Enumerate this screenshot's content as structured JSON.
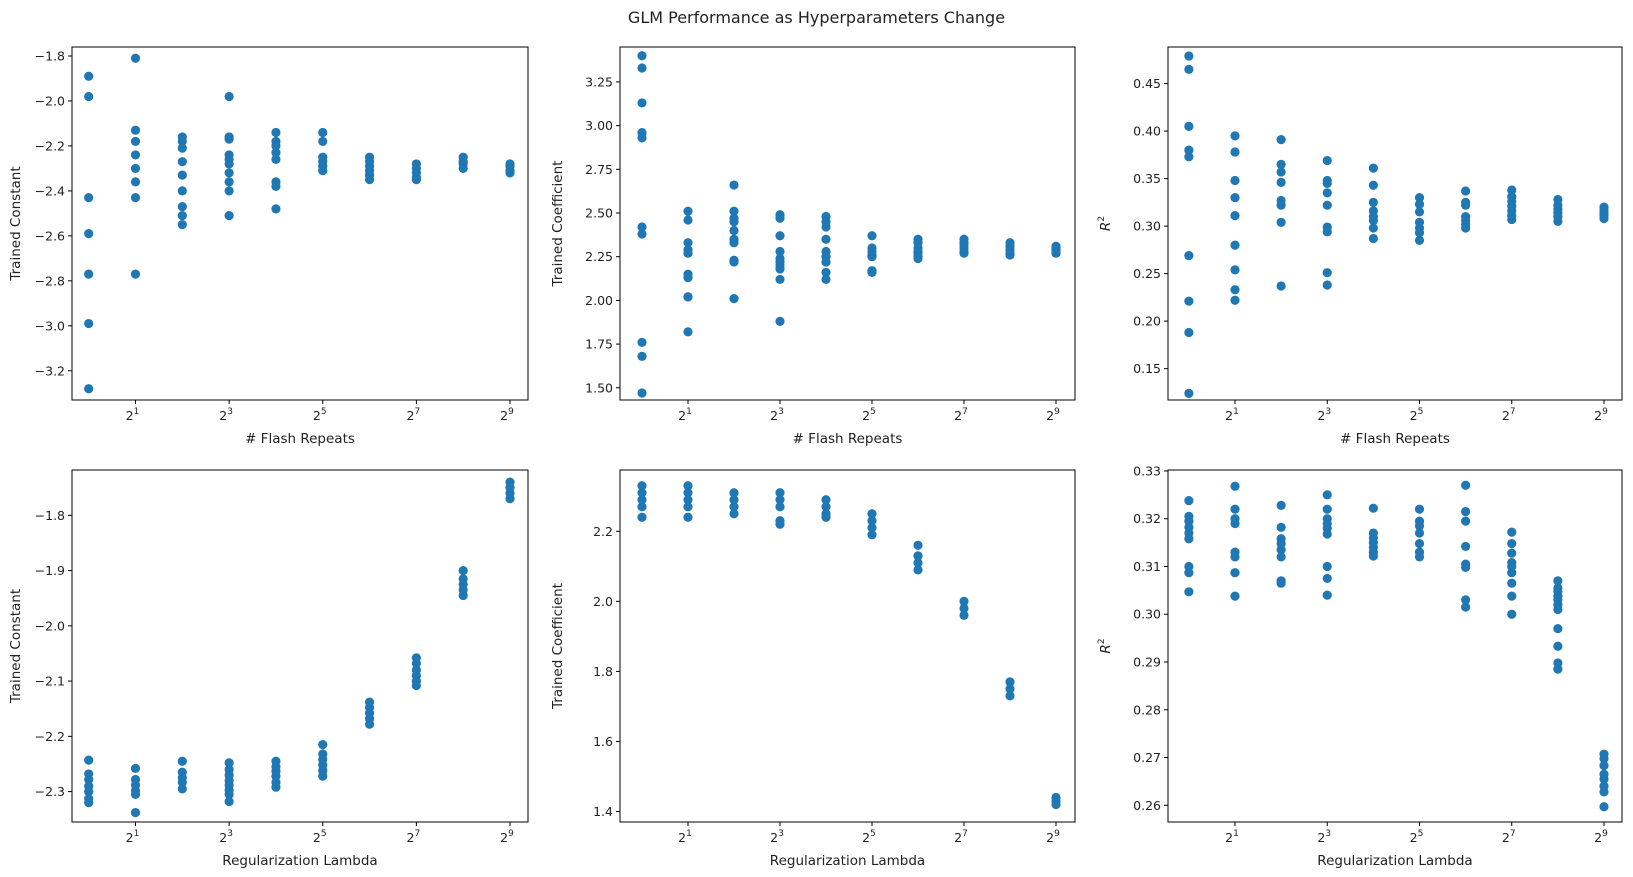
{
  "title": "GLM Performance as Hyperparameters Change",
  "colors": {
    "marker": "#1f77b4",
    "axis": "#000000"
  },
  "chart_data": [
    {
      "type": "scatter",
      "id": "flash-constant",
      "xlabel": "# Flash Repeats",
      "ylabel": "Trained Constant",
      "xscale": "log2",
      "xticks": [
        {
          "exp": 1,
          "label": "2"
        },
        {
          "exp": 3,
          "label": "2"
        },
        {
          "exp": 5,
          "label": "2"
        },
        {
          "exp": 7,
          "label": "2"
        },
        {
          "exp": 9,
          "label": "2"
        }
      ],
      "yticks": [
        "-1.8",
        "-2.0",
        "-2.2",
        "-2.4",
        "-2.6",
        "-2.8",
        "-3.0",
        "-3.2"
      ],
      "ylim": [
        -3.33,
        -1.76
      ],
      "points": [
        {
          "x": 0,
          "y": [
            -1.89,
            -1.98,
            -2.43,
            -2.59,
            -2.77,
            -2.99,
            -3.28
          ]
        },
        {
          "x": 1,
          "y": [
            -1.81,
            -2.13,
            -2.18,
            -2.24,
            -2.3,
            -2.36,
            -2.43,
            -2.77
          ]
        },
        {
          "x": 2,
          "y": [
            -2.16,
            -2.18,
            -2.21,
            -2.27,
            -2.33,
            -2.4,
            -2.47,
            -2.51,
            -2.55
          ]
        },
        {
          "x": 3,
          "y": [
            -1.98,
            -2.16,
            -2.17,
            -2.24,
            -2.26,
            -2.28,
            -2.32,
            -2.36,
            -2.4,
            -2.51
          ]
        },
        {
          "x": 4,
          "y": [
            -2.14,
            -2.18,
            -2.2,
            -2.23,
            -2.26,
            -2.36,
            -2.38,
            -2.48
          ]
        },
        {
          "x": 5,
          "y": [
            -2.14,
            -2.18,
            -2.25,
            -2.27,
            -2.29,
            -2.31
          ]
        },
        {
          "x": 6,
          "y": [
            -2.25,
            -2.27,
            -2.29,
            -2.31,
            -2.33,
            -2.35
          ]
        },
        {
          "x": 7,
          "y": [
            -2.28,
            -2.3,
            -2.32,
            -2.34,
            -2.35
          ]
        },
        {
          "x": 8,
          "y": [
            -2.25,
            -2.27,
            -2.28,
            -2.3
          ]
        },
        {
          "x": 9,
          "y": [
            -2.28,
            -2.29,
            -2.31,
            -2.32
          ]
        }
      ]
    },
    {
      "type": "scatter",
      "id": "flash-coefficient",
      "xlabel": "# Flash Repeats",
      "ylabel": "Trained Coefficient",
      "xscale": "log2",
      "xticks": [
        {
          "exp": 1,
          "label": "2"
        },
        {
          "exp": 3,
          "label": "2"
        },
        {
          "exp": 5,
          "label": "2"
        },
        {
          "exp": 7,
          "label": "2"
        },
        {
          "exp": 9,
          "label": "2"
        }
      ],
      "yticks": [
        "1.50",
        "1.75",
        "2.00",
        "2.25",
        "2.50",
        "2.75",
        "3.00",
        "3.25"
      ],
      "ylim": [
        1.43,
        3.45
      ],
      "points": [
        {
          "x": 0,
          "y": [
            3.4,
            3.33,
            3.13,
            2.96,
            2.93,
            2.42,
            2.38,
            1.76,
            1.68,
            1.47
          ]
        },
        {
          "x": 1,
          "y": [
            2.51,
            2.46,
            2.33,
            2.29,
            2.27,
            2.15,
            2.13,
            2.02,
            2.02,
            1.82
          ]
        },
        {
          "x": 2,
          "y": [
            2.66,
            2.51,
            2.47,
            2.45,
            2.4,
            2.35,
            2.33,
            2.23,
            2.22,
            2.01
          ]
        },
        {
          "x": 3,
          "y": [
            2.49,
            2.47,
            2.37,
            2.28,
            2.24,
            2.22,
            2.2,
            2.18,
            2.12,
            1.88
          ]
        },
        {
          "x": 4,
          "y": [
            2.48,
            2.45,
            2.42,
            2.35,
            2.28,
            2.25,
            2.22,
            2.16,
            2.12
          ]
        },
        {
          "x": 5,
          "y": [
            2.37,
            2.3,
            2.28,
            2.26,
            2.25,
            2.17,
            2.16
          ]
        },
        {
          "x": 6,
          "y": [
            2.35,
            2.33,
            2.3,
            2.28,
            2.27,
            2.25,
            2.24
          ]
        },
        {
          "x": 7,
          "y": [
            2.35,
            2.33,
            2.32,
            2.3,
            2.28,
            2.27
          ]
        },
        {
          "x": 8,
          "y": [
            2.33,
            2.31,
            2.29,
            2.27,
            2.26
          ]
        },
        {
          "x": 9,
          "y": [
            2.31,
            2.3,
            2.29,
            2.28,
            2.27
          ]
        }
      ]
    },
    {
      "type": "scatter",
      "id": "flash-r2",
      "xlabel": "# Flash Repeats",
      "ylabel": "R",
      "ylabel_sup": "2",
      "xscale": "log2",
      "xticks": [
        {
          "exp": 1,
          "label": "2"
        },
        {
          "exp": 3,
          "label": "2"
        },
        {
          "exp": 5,
          "label": "2"
        },
        {
          "exp": 7,
          "label": "2"
        },
        {
          "exp": 9,
          "label": "2"
        }
      ],
      "yticks": [
        "0.15",
        "0.20",
        "0.25",
        "0.30",
        "0.35",
        "0.40",
        "0.45"
      ],
      "ylim": [
        0.117,
        0.4885
      ],
      "points": [
        {
          "x": 0,
          "y": [
            0.479,
            0.465,
            0.405,
            0.38,
            0.373,
            0.269,
            0.221,
            0.188,
            0.124
          ]
        },
        {
          "x": 1,
          "y": [
            0.395,
            0.378,
            0.348,
            0.33,
            0.311,
            0.28,
            0.254,
            0.233,
            0.222
          ]
        },
        {
          "x": 2,
          "y": [
            0.391,
            0.365,
            0.357,
            0.346,
            0.327,
            0.322,
            0.304,
            0.237
          ]
        },
        {
          "x": 3,
          "y": [
            0.369,
            0.348,
            0.345,
            0.335,
            0.322,
            0.299,
            0.294,
            0.251,
            0.238
          ]
        },
        {
          "x": 4,
          "y": [
            0.361,
            0.343,
            0.325,
            0.316,
            0.31,
            0.306,
            0.298,
            0.287
          ]
        },
        {
          "x": 5,
          "y": [
            0.33,
            0.323,
            0.315,
            0.304,
            0.298,
            0.293,
            0.285
          ]
        },
        {
          "x": 6,
          "y": [
            0.337,
            0.325,
            0.322,
            0.31,
            0.306,
            0.302,
            0.298
          ]
        },
        {
          "x": 7,
          "y": [
            0.338,
            0.331,
            0.326,
            0.321,
            0.316,
            0.311,
            0.307
          ]
        },
        {
          "x": 8,
          "y": [
            0.328,
            0.322,
            0.318,
            0.314,
            0.31,
            0.305
          ]
        },
        {
          "x": 9,
          "y": [
            0.32,
            0.317,
            0.314,
            0.311,
            0.308
          ]
        }
      ]
    },
    {
      "type": "scatter",
      "id": "lambda-constant",
      "xlabel": "Regularization Lambda",
      "ylabel": "Trained Constant",
      "xscale": "log2",
      "xticks": [
        {
          "exp": 1,
          "label": "2"
        },
        {
          "exp": 3,
          "label": "2"
        },
        {
          "exp": 5,
          "label": "2"
        },
        {
          "exp": 7,
          "label": "2"
        },
        {
          "exp": 9,
          "label": "2"
        }
      ],
      "yticks": [
        "-1.8",
        "-1.9",
        "-2.0",
        "-2.1",
        "-2.2",
        "-2.3"
      ],
      "ylim": [
        -2.355,
        -1.718
      ],
      "points": [
        {
          "x": 0,
          "y": [
            -2.243,
            -2.268,
            -2.278,
            -2.29,
            -2.3,
            -2.313,
            -2.32
          ]
        },
        {
          "x": 1,
          "y": [
            -2.258,
            -2.278,
            -2.288,
            -2.298,
            -2.305,
            -2.338
          ]
        },
        {
          "x": 2,
          "y": [
            -2.245,
            -2.265,
            -2.275,
            -2.283,
            -2.295
          ]
        },
        {
          "x": 3,
          "y": [
            -2.248,
            -2.26,
            -2.27,
            -2.28,
            -2.288,
            -2.297,
            -2.305,
            -2.318
          ]
        },
        {
          "x": 4,
          "y": [
            -2.245,
            -2.255,
            -2.263,
            -2.272,
            -2.283,
            -2.292
          ]
        },
        {
          "x": 5,
          "y": [
            -2.215,
            -2.232,
            -2.242,
            -2.252,
            -2.262,
            -2.272
          ]
        },
        {
          "x": 6,
          "y": [
            -2.138,
            -2.148,
            -2.158,
            -2.168,
            -2.178
          ]
        },
        {
          "x": 7,
          "y": [
            -2.058,
            -2.068,
            -2.08,
            -2.09,
            -2.1,
            -2.108
          ]
        },
        {
          "x": 8,
          "y": [
            -1.9,
            -1.915,
            -1.925,
            -1.935,
            -1.945
          ]
        },
        {
          "x": 9,
          "y": [
            -1.74,
            -1.75,
            -1.76,
            -1.77
          ]
        }
      ]
    },
    {
      "type": "scatter",
      "id": "lambda-coefficient",
      "xlabel": "Regularization Lambda",
      "ylabel": "Trained Coefficient",
      "xscale": "log2",
      "xticks": [
        {
          "exp": 1,
          "label": "2"
        },
        {
          "exp": 3,
          "label": "2"
        },
        {
          "exp": 5,
          "label": "2"
        },
        {
          "exp": 7,
          "label": "2"
        },
        {
          "exp": 9,
          "label": "2"
        }
      ],
      "yticks": [
        "1.4",
        "1.6",
        "1.8",
        "2.0",
        "2.2"
      ],
      "ylim": [
        1.37,
        2.375
      ],
      "points": [
        {
          "x": 0,
          "y": [
            2.33,
            2.31,
            2.29,
            2.27,
            2.24
          ]
        },
        {
          "x": 1,
          "y": [
            2.33,
            2.31,
            2.29,
            2.27,
            2.24
          ]
        },
        {
          "x": 2,
          "y": [
            2.31,
            2.29,
            2.27,
            2.25
          ]
        },
        {
          "x": 3,
          "y": [
            2.31,
            2.29,
            2.27,
            2.23,
            2.22
          ]
        },
        {
          "x": 4,
          "y": [
            2.29,
            2.27,
            2.25,
            2.24
          ]
        },
        {
          "x": 5,
          "y": [
            2.25,
            2.23,
            2.21,
            2.19
          ]
        },
        {
          "x": 6,
          "y": [
            2.16,
            2.13,
            2.11,
            2.09
          ]
        },
        {
          "x": 7,
          "y": [
            2.0,
            1.98,
            1.96
          ]
        },
        {
          "x": 8,
          "y": [
            1.77,
            1.75,
            1.73
          ]
        },
        {
          "x": 9,
          "y": [
            1.44,
            1.43,
            1.42
          ]
        }
      ]
    },
    {
      "type": "scatter",
      "id": "lambda-r2",
      "xlabel": "Regularization Lambda",
      "ylabel": "R",
      "ylabel_sup": "2",
      "xscale": "log2",
      "xticks": [
        {
          "exp": 1,
          "label": "2"
        },
        {
          "exp": 3,
          "label": "2"
        },
        {
          "exp": 5,
          "label": "2"
        },
        {
          "exp": 7,
          "label": "2"
        },
        {
          "exp": 9,
          "label": "2"
        }
      ],
      "yticks": [
        "0.26",
        "0.27",
        "0.28",
        "0.29",
        "0.30",
        "0.31",
        "0.32",
        "0.33"
      ],
      "ylim": [
        0.2565,
        0.3302
      ],
      "points": [
        {
          "x": 0,
          "y": [
            0.3238,
            0.3205,
            0.3195,
            0.3182,
            0.317,
            0.3158,
            0.31,
            0.3087,
            0.3047
          ]
        },
        {
          "x": 1,
          "y": [
            0.3268,
            0.322,
            0.32,
            0.319,
            0.313,
            0.312,
            0.3087,
            0.3038
          ]
        },
        {
          "x": 2,
          "y": [
            0.3228,
            0.3182,
            0.3158,
            0.3148,
            0.3135,
            0.312,
            0.307,
            0.3065
          ]
        },
        {
          "x": 3,
          "y": [
            0.325,
            0.322,
            0.32,
            0.319,
            0.318,
            0.3168,
            0.31,
            0.3075,
            0.304
          ]
        },
        {
          "x": 4,
          "y": [
            0.3222,
            0.317,
            0.316,
            0.315,
            0.314,
            0.313,
            0.3122
          ]
        },
        {
          "x": 5,
          "y": [
            0.322,
            0.3195,
            0.3185,
            0.317,
            0.3148,
            0.313,
            0.312
          ]
        },
        {
          "x": 6,
          "y": [
            0.327,
            0.3215,
            0.3195,
            0.3142,
            0.3105,
            0.3098,
            0.303,
            0.3015
          ]
        },
        {
          "x": 7,
          "y": [
            0.3172,
            0.3148,
            0.3128,
            0.3108,
            0.31,
            0.3087,
            0.3065,
            0.3038,
            0.3
          ]
        },
        {
          "x": 8,
          "y": [
            0.307,
            0.3055,
            0.3048,
            0.3038,
            0.303,
            0.302,
            0.301,
            0.297,
            0.2933,
            0.2898,
            0.2885
          ]
        },
        {
          "x": 9,
          "y": [
            0.2707,
            0.2698,
            0.2683,
            0.2665,
            0.2655,
            0.264,
            0.2628,
            0.2597
          ]
        }
      ]
    }
  ]
}
